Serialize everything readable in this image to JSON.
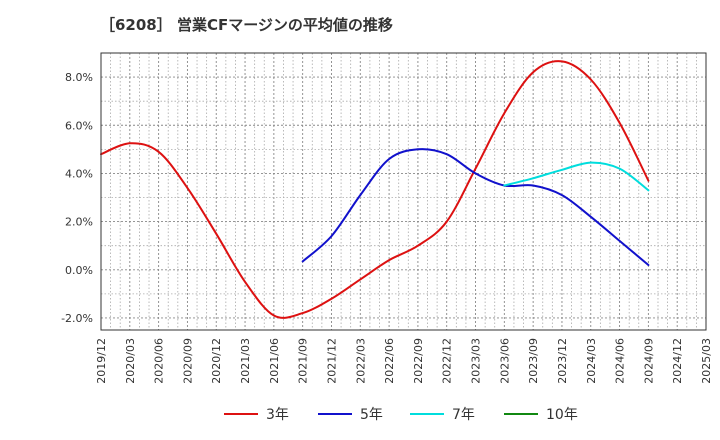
{
  "chart_data": {
    "type": "line",
    "title": "［6208］ 営業CFマージンの平均値の推移",
    "xlabel": "",
    "ylabel": "",
    "x_ticks": [
      "2019/12",
      "2020/03",
      "2020/06",
      "2020/09",
      "2020/12",
      "2021/03",
      "2021/06",
      "2021/09",
      "2021/12",
      "2022/03",
      "2022/06",
      "2022/09",
      "2022/12",
      "2023/03",
      "2023/06",
      "2023/09",
      "2023/12",
      "2024/03",
      "2024/06",
      "2024/09",
      "2024/12",
      "2025/03"
    ],
    "y_ticks": [
      "8.0%",
      "6.0%",
      "4.0%",
      "2.0%",
      "0.0%",
      "-2.0%"
    ],
    "y_tick_values": [
      8,
      6,
      4,
      2,
      0,
      -2
    ],
    "ylim": [
      -2.5,
      9.0
    ],
    "y_unit": "%",
    "grid": true,
    "legend_position": "bottom",
    "series": [
      {
        "name": "3年",
        "color": "#dd1111",
        "x": [
          "2019/12",
          "2020/03",
          "2020/06",
          "2020/09",
          "2020/12",
          "2021/03",
          "2021/06",
          "2021/09",
          "2021/12",
          "2022/03",
          "2022/06",
          "2022/09",
          "2022/12",
          "2023/03",
          "2023/06",
          "2023/09",
          "2023/12",
          "2024/03",
          "2024/06",
          "2024/09"
        ],
        "values": [
          4.8,
          5.25,
          4.9,
          3.4,
          1.5,
          -0.5,
          -1.9,
          -1.8,
          -1.2,
          -0.4,
          0.4,
          1.0,
          2.0,
          4.2,
          6.5,
          8.2,
          8.65,
          7.9,
          6.1,
          3.7
        ]
      },
      {
        "name": "5年",
        "color": "#1111cc",
        "x": [
          "2021/09",
          "2021/12",
          "2022/03",
          "2022/06",
          "2022/09",
          "2022/12",
          "2023/03",
          "2023/06",
          "2023/09",
          "2023/12",
          "2024/03",
          "2024/06",
          "2024/09"
        ],
        "values": [
          0.35,
          1.4,
          3.1,
          4.6,
          5.0,
          4.8,
          4.0,
          3.5,
          3.5,
          3.1,
          2.2,
          1.2,
          0.2
        ]
      },
      {
        "name": "7年",
        "color": "#00dddd",
        "x": [
          "2023/06",
          "2023/09",
          "2023/12",
          "2024/03",
          "2024/06",
          "2024/09"
        ],
        "values": [
          3.5,
          3.8,
          4.15,
          4.45,
          4.2,
          3.3
        ]
      },
      {
        "name": "10年",
        "color": "#118811",
        "x": [],
        "values": []
      }
    ]
  }
}
